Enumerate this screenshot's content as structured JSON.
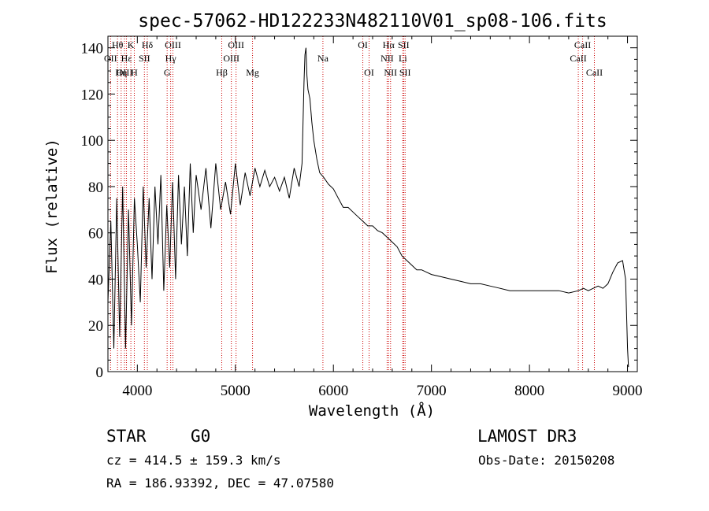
{
  "chart_data": {
    "type": "line",
    "title": "spec-57062-HD122233N482110V01_sp08-106.fits",
    "xlabel": "Wavelength (Å)",
    "ylabel": "Flux (relative)",
    "xlim": [
      3700,
      9100
    ],
    "ylim": [
      0,
      145
    ],
    "xticks": [
      4000,
      5000,
      6000,
      7000,
      8000,
      9000
    ],
    "yticks": [
      0,
      20,
      40,
      60,
      80,
      100,
      120,
      140
    ],
    "series": [
      {
        "name": "flux",
        "x": [
          3700,
          3730,
          3760,
          3790,
          3820,
          3850,
          3880,
          3910,
          3940,
          3970,
          4000,
          4030,
          4060,
          4090,
          4120,
          4150,
          4180,
          4210,
          4240,
          4270,
          4300,
          4330,
          4360,
          4390,
          4420,
          4450,
          4480,
          4510,
          4540,
          4570,
          4600,
          4650,
          4700,
          4750,
          4800,
          4850,
          4900,
          4950,
          5000,
          5050,
          5100,
          5150,
          5200,
          5250,
          5300,
          5350,
          5400,
          5450,
          5500,
          5550,
          5600,
          5650,
          5680,
          5700,
          5710,
          5720,
          5730,
          5740,
          5760,
          5780,
          5800,
          5830,
          5860,
          5900,
          5950,
          6000,
          6050,
          6100,
          6150,
          6200,
          6250,
          6300,
          6350,
          6400,
          6450,
          6500,
          6550,
          6600,
          6650,
          6700,
          6750,
          6800,
          6850,
          6900,
          6950,
          7000,
          7100,
          7200,
          7300,
          7400,
          7500,
          7600,
          7700,
          7800,
          7900,
          8000,
          8100,
          8200,
          8300,
          8400,
          8500,
          8550,
          8600,
          8650,
          8700,
          8750,
          8800,
          8850,
          8900,
          8950,
          8980,
          9000,
          9010
        ],
        "y": [
          30,
          65,
          10,
          75,
          15,
          80,
          10,
          70,
          20,
          75,
          55,
          30,
          80,
          45,
          75,
          40,
          80,
          55,
          85,
          35,
          72,
          45,
          82,
          40,
          85,
          55,
          80,
          50,
          90,
          60,
          85,
          70,
          88,
          62,
          90,
          70,
          82,
          68,
          90,
          72,
          86,
          76,
          88,
          80,
          87,
          80,
          84,
          78,
          84,
          75,
          88,
          80,
          90,
          125,
          137,
          140,
          128,
          122,
          118,
          108,
          100,
          92,
          86,
          84,
          81,
          79,
          75,
          71,
          71,
          69,
          67,
          65,
          63,
          63,
          61,
          60,
          58,
          56,
          54,
          50,
          48,
          46,
          44,
          44,
          43,
          42,
          41,
          40,
          39,
          38,
          38,
          37,
          36,
          35,
          35,
          35,
          35,
          35,
          35,
          34,
          35,
          36,
          35,
          36,
          37,
          36,
          38,
          43,
          47,
          48,
          40,
          10,
          2
        ]
      }
    ],
    "lines": [
      {
        "label": "Hθ",
        "x": 3798,
        "row": 0
      },
      {
        "label": "OII",
        "x": 3727,
        "row": 1
      },
      {
        "label": "OIII",
        "x": 3869,
        "row": 2
      },
      {
        "label": "Hη",
        "x": 3835,
        "row": 2
      },
      {
        "label": "K",
        "x": 3934,
        "row": 0
      },
      {
        "label": "Hε",
        "x": 3889,
        "row": 1
      },
      {
        "label": "H",
        "x": 3969,
        "row": 2
      },
      {
        "label": "Hδ",
        "x": 4102,
        "row": 0
      },
      {
        "label": "SII",
        "x": 4072,
        "row": 1
      },
      {
        "label": "OIII",
        "x": 4363,
        "row": 0
      },
      {
        "label": "Hγ",
        "x": 4340,
        "row": 1
      },
      {
        "label": "G",
        "x": 4304,
        "row": 2
      },
      {
        "label": "OIII",
        "x": 5007,
        "row": 0
      },
      {
        "label": "OIII",
        "x": 4959,
        "row": 1
      },
      {
        "label": "Hβ",
        "x": 4861,
        "row": 2
      },
      {
        "label": "Mg",
        "x": 5175,
        "row": 2
      },
      {
        "label": "Na",
        "x": 5893,
        "row": 1
      },
      {
        "label": "OI",
        "x": 6300,
        "row": 0
      },
      {
        "label": "OI",
        "x": 6364,
        "row": 2
      },
      {
        "label": "Hα",
        "x": 6563,
        "row": 0
      },
      {
        "label": "NII",
        "x": 6548,
        "row": 1
      },
      {
        "label": "NII",
        "x": 6583,
        "row": 2
      },
      {
        "label": "SII",
        "x": 6716,
        "row": 0
      },
      {
        "label": "Li",
        "x": 6708,
        "row": 1
      },
      {
        "label": "SII",
        "x": 6731,
        "row": 2
      },
      {
        "label": "CaII",
        "x": 8542,
        "row": 0
      },
      {
        "label": "CaII",
        "x": 8498,
        "row": 1
      },
      {
        "label": "CaII",
        "x": 8662,
        "row": 2
      }
    ]
  },
  "info": {
    "class": "STAR",
    "subclass": "G0",
    "survey": "LAMOST DR3",
    "cz": "cz = 414.5 ± 159.3 km/s",
    "obs_date": "Obs-Date: 20150208",
    "radec": "RA = 186.93392, DEC =  47.07580"
  }
}
